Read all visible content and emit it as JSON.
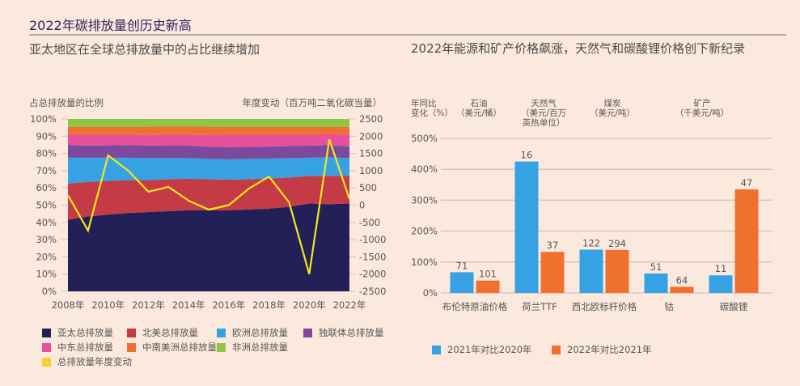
{
  "header": {
    "main_title": "2022年碳排放量创历史新高",
    "left_subtitle": "亚太地区在全球总排放量中的占比继续增加",
    "right_subtitle": "2022年能源和矿产价格飙涨，天然气和碳酸锂价格创下新纪录"
  },
  "chart_data": [
    {
      "type": "area",
      "title": "亚太地区在全球总排放量中的占比继续增加",
      "ylabel_left": "占总排放量的比例",
      "ylabel_right": "年度变动（百万吨二氧化碳当量）",
      "x": [
        2008,
        2009,
        2010,
        2011,
        2012,
        2013,
        2014,
        2015,
        2016,
        2017,
        2018,
        2019,
        2020,
        2021,
        2022
      ],
      "x_tick_labels": [
        "2008年",
        "2010年",
        "2012年",
        "2014年",
        "2016年",
        "2018年",
        "2020年",
        "2022年"
      ],
      "x_tick_values": [
        2008,
        2010,
        2012,
        2014,
        2016,
        2018,
        2020,
        2022
      ],
      "y_left_ticks": [
        "0%",
        "10%",
        "20%",
        "30%",
        "40%",
        "50%",
        "60%",
        "70%",
        "80%",
        "90%",
        "100%"
      ],
      "y_left_lim": [
        0,
        100
      ],
      "y_right_ticks": [
        "-2500",
        "-2000",
        "-1500",
        "-1000",
        "-500",
        "0",
        "500",
        "1000",
        "1500",
        "2000",
        "2500"
      ],
      "y_right_lim": [
        -2500,
        2500
      ],
      "series": [
        {
          "name": "亚太总排放量",
          "color": "#231f57",
          "values": [
            41.5,
            43.5,
            44.5,
            45.5,
            46.0,
            46.5,
            47.0,
            47.0,
            47.0,
            47.5,
            48.0,
            49.0,
            51.0,
            50.5,
            51.0
          ]
        },
        {
          "name": "北美总排放量",
          "color": "#c43a45",
          "values": [
            21.0,
            20.0,
            19.5,
            19.0,
            18.5,
            18.5,
            18.3,
            18.0,
            17.8,
            17.5,
            17.5,
            17.0,
            16.0,
            16.5,
            16.0
          ]
        },
        {
          "name": "欧洲总排放量",
          "color": "#36a1e3",
          "values": [
            15.0,
            14.0,
            13.5,
            13.0,
            12.8,
            12.3,
            12.0,
            11.8,
            11.8,
            11.8,
            11.5,
            11.3,
            10.5,
            10.8,
            10.3
          ]
        },
        {
          "name": "独联体总排放量",
          "color": "#7b4a9c",
          "values": [
            7.5,
            7.0,
            7.2,
            7.3,
            7.3,
            7.2,
            7.2,
            7.1,
            7.1,
            7.0,
            7.0,
            7.0,
            7.0,
            7.0,
            6.8
          ]
        },
        {
          "name": "中东总排放量",
          "color": "#e9509a",
          "values": [
            6.0,
            6.5,
            6.3,
            6.2,
            6.3,
            6.5,
            6.5,
            7.0,
            7.2,
            7.0,
            7.0,
            6.7,
            6.5,
            6.3,
            6.8
          ]
        },
        {
          "name": "中南美洲总排放量",
          "color": "#f07030",
          "values": [
            4.5,
            4.5,
            4.5,
            4.5,
            4.6,
            4.6,
            4.6,
            4.6,
            4.6,
            4.6,
            4.5,
            4.5,
            4.5,
            4.4,
            4.5
          ]
        },
        {
          "name": "非洲总排放量",
          "color": "#8dc645",
          "values": [
            4.5,
            4.5,
            4.5,
            4.5,
            4.5,
            4.4,
            4.4,
            4.5,
            4.5,
            4.6,
            4.5,
            4.5,
            4.5,
            4.5,
            4.6
          ]
        }
      ],
      "line_series": {
        "name": "总排放量年度变动",
        "color": "#f7e61b",
        "axis": "right",
        "values": [
          290,
          -740,
          1440,
          1000,
          390,
          530,
          130,
          -130,
          0,
          480,
          830,
          80,
          -2000,
          1910,
          180
        ]
      },
      "legend": [
        {
          "label": "亚太总排放量",
          "color": "#231f57"
        },
        {
          "label": "北美总排放量",
          "color": "#c43a45"
        },
        {
          "label": "欧洲总排放量",
          "color": "#36a1e3"
        },
        {
          "label": "独联体总排放量",
          "color": "#7b4a9c"
        },
        {
          "label": "中东总排放量",
          "color": "#e9509a"
        },
        {
          "label": "中南美洲总排放量",
          "color": "#f07030"
        },
        {
          "label": "非洲总排放量",
          "color": "#8dc645"
        },
        {
          "label": "总排放量年度变动",
          "color": "#f3d12e"
        }
      ],
      "legend_position": "bottom",
      "grid": false
    },
    {
      "type": "bar",
      "title": "2022年能源和矿产价格飙涨，天然气和碳酸锂价格创下新纪录",
      "ylabel": "年同比变化（%）",
      "ylabel_lines": [
        "年同比",
        "变化（%）"
      ],
      "ylim": [
        0,
        500
      ],
      "y_ticks": [
        "0%",
        "100%",
        "200%",
        "300%",
        "400%",
        "500%"
      ],
      "grid": true,
      "group_headers": [
        {
          "lines": [
            "石油",
            "（美元/桶）"
          ]
        },
        {
          "lines": [
            "天然气",
            "（美元/百万",
            "英热单位）"
          ]
        },
        {
          "lines": [
            "煤炭",
            "（美元/吨）"
          ]
        },
        {
          "lines": [
            "矿产",
            "（千美元/吨）"
          ]
        }
      ],
      "categories": [
        "布伦特原油价格",
        "荷兰TTF",
        "西北欧标杆价格",
        "钴",
        "碳酸锂"
      ],
      "series": [
        {
          "name": "2021年对比2020年",
          "color": "#36a1e3",
          "values": [
            67,
            425,
            140,
            63,
            57
          ],
          "labels": [
            "71",
            "16",
            "122",
            "51",
            "11"
          ]
        },
        {
          "name": "2022年对比2021年",
          "color": "#f07030",
          "values": [
            40,
            133,
            139,
            20,
            335
          ],
          "labels": [
            "101",
            "37",
            "294",
            "64",
            "47"
          ]
        }
      ],
      "legend": [
        {
          "label": "2021年对比2020年",
          "color": "#36a1e3"
        },
        {
          "label": "2022年对比2021年",
          "color": "#f07030"
        }
      ],
      "legend_position": "bottom"
    }
  ]
}
